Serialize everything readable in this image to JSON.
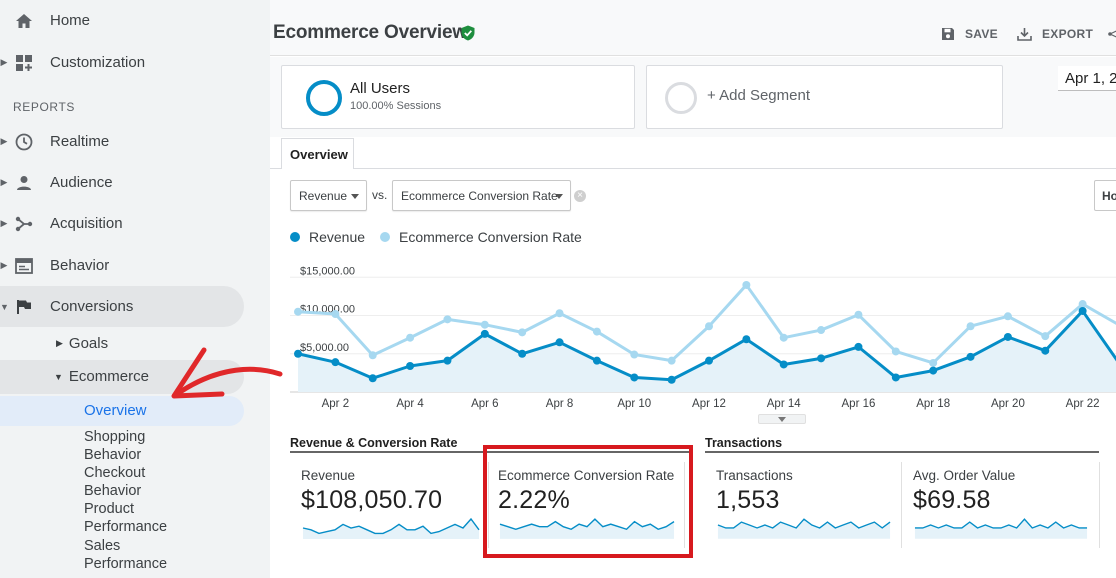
{
  "sidebar": {
    "items": [
      {
        "label": "Home",
        "icon": "home-icon"
      },
      {
        "label": "Customization",
        "icon": "dashboard-icon"
      }
    ],
    "reports_label": "REPORTS",
    "report_items": [
      {
        "label": "Realtime",
        "icon": "clock-icon"
      },
      {
        "label": "Audience",
        "icon": "person-icon"
      },
      {
        "label": "Acquisition",
        "icon": "acquisition-icon"
      },
      {
        "label": "Behavior",
        "icon": "behavior-icon"
      },
      {
        "label": "Conversions",
        "icon": "flag-icon"
      }
    ],
    "goals_label": "Goals",
    "ecommerce_label": "Ecommerce",
    "ecommerce_children": [
      "Overview",
      "Shopping",
      "Behavior",
      "Checkout",
      "Behavior",
      "Product",
      "Performance",
      "Sales",
      "Performance"
    ]
  },
  "header": {
    "title": "Ecommerce Overview",
    "save_label": "SAVE",
    "export_label": "EXPORT"
  },
  "segments": {
    "primary_name": "All Users",
    "primary_sub": "100.00% Sessions",
    "add_label": "+ Add Segment",
    "date_label": "Apr 1, 2"
  },
  "tab_label": "Overview",
  "controls": {
    "metric1": "Revenue",
    "vs": "vs.",
    "metric2": "Ecommerce Conversion Rate",
    "hourly_label": "Ho"
  },
  "colors": {
    "revenue": "#058dc7",
    "conversion": "#a6d8f0",
    "highlight": "#d7191e",
    "annotation": "#e0282a"
  },
  "chart_data": {
    "type": "line",
    "title": "",
    "yticks": [
      "$15,000.00",
      "$10,000.00",
      "$5,000.00"
    ],
    "ylim": [
      0,
      17000
    ],
    "x": [
      "Apr 1",
      "Apr 2",
      "Apr 3",
      "Apr 4",
      "Apr 5",
      "Apr 6",
      "Apr 7",
      "Apr 8",
      "Apr 9",
      "Apr 10",
      "Apr 11",
      "Apr 12",
      "Apr 13",
      "Apr 14",
      "Apr 15",
      "Apr 16",
      "Apr 17",
      "Apr 18",
      "Apr 19",
      "Apr 20",
      "Apr 21",
      "Apr 22",
      "Apr 23"
    ],
    "xticks": [
      "Apr 2",
      "Apr 4",
      "Apr 6",
      "Apr 8",
      "Apr 10",
      "Apr 12",
      "Apr 14",
      "Apr 16",
      "Apr 18",
      "Apr 20",
      "Apr 22"
    ],
    "series": [
      {
        "name": "Revenue",
        "values": [
          5000,
          3900,
          1800,
          3400,
          4100,
          7600,
          5000,
          6500,
          4100,
          1900,
          1600,
          4100,
          6900,
          3600,
          4400,
          5900,
          1900,
          2800,
          4600,
          7200,
          5400,
          10600,
          3600
        ]
      },
      {
        "name": "Ecommerce Conversion Rate",
        "values": [
          10500,
          10200,
          4800,
          7100,
          9500,
          8800,
          7800,
          10300,
          7900,
          4900,
          4100,
          8600,
          14000,
          7100,
          8100,
          10100,
          5300,
          3800,
          8600,
          9900,
          7300,
          11500,
          8700
        ]
      }
    ],
    "legend": "top-left"
  },
  "summary": {
    "rev_section": "Revenue & Conversion Rate",
    "trans_section": "Transactions",
    "cards": [
      {
        "label": "Revenue",
        "value": "$108,050.70",
        "spark": [
          5,
          4,
          2,
          3,
          4,
          7,
          5,
          6,
          4,
          2,
          2,
          4,
          7,
          4,
          4,
          6,
          2,
          3,
          5,
          7,
          5,
          10,
          4
        ]
      },
      {
        "label": "Ecommerce Conversion Rate",
        "value": "2.22%",
        "spark": [
          5,
          4,
          3,
          4,
          5,
          4,
          4,
          6,
          4,
          3,
          5,
          4,
          7,
          4,
          5,
          4,
          3,
          6,
          4,
          5,
          3,
          4,
          6
        ]
      },
      {
        "label": "Transactions",
        "value": "1,553",
        "spark": [
          4,
          3,
          3,
          5,
          4,
          3,
          4,
          3,
          5,
          4,
          3,
          6,
          4,
          3,
          5,
          3,
          4,
          5,
          3,
          4,
          5,
          3,
          5
        ]
      },
      {
        "label": "Avg. Order Value",
        "value": "$69.58",
        "spark": [
          3,
          3,
          4,
          3,
          4,
          3,
          3,
          5,
          3,
          4,
          3,
          3,
          4,
          3,
          6,
          3,
          4,
          3,
          5,
          3,
          4,
          3,
          3
        ]
      }
    ]
  }
}
